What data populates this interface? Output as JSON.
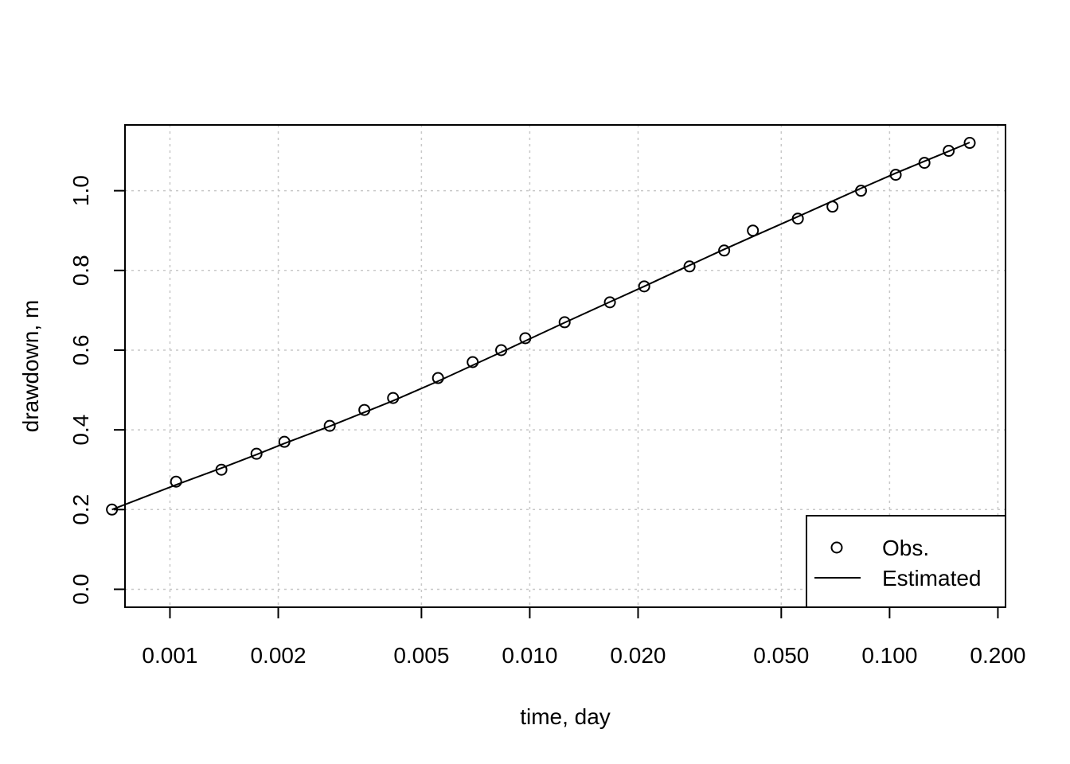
{
  "chart_data": {
    "type": "scatter",
    "title": "",
    "xlabel": "time, day",
    "ylabel": "drawdown, m",
    "x_scale": "log",
    "xlim": [
      0.00075,
      0.21
    ],
    "ylim": [
      -0.045,
      1.165
    ],
    "x_ticks": [
      0.001,
      0.002,
      0.005,
      0.01,
      0.02,
      0.05,
      0.1,
      0.2
    ],
    "x_tick_labels": [
      "0.001",
      "0.002",
      "0.005",
      "0.010",
      "0.020",
      "0.050",
      "0.100",
      "0.200"
    ],
    "y_ticks": [
      0.0,
      0.2,
      0.4,
      0.6,
      0.8,
      1.0
    ],
    "y_tick_labels": [
      "0.0",
      "0.2",
      "0.4",
      "0.6",
      "0.8",
      "1.0"
    ],
    "grid": true,
    "legend_position": "bottom-right",
    "series": [
      {
        "name": "Obs.",
        "kind": "points",
        "marker": "open-circle",
        "x": [
          0.00069,
          0.00104,
          0.00139,
          0.00174,
          0.00208,
          0.00278,
          0.00347,
          0.00417,
          0.00556,
          0.00694,
          0.00833,
          0.00972,
          0.0125,
          0.0167,
          0.0208,
          0.0278,
          0.0347,
          0.0417,
          0.0556,
          0.0694,
          0.0833,
          0.104,
          0.125,
          0.146,
          0.167
        ],
        "y": [
          0.2,
          0.27,
          0.3,
          0.34,
          0.37,
          0.41,
          0.45,
          0.48,
          0.53,
          0.57,
          0.6,
          0.63,
          0.67,
          0.72,
          0.76,
          0.81,
          0.85,
          0.9,
          0.93,
          0.96,
          1.0,
          1.04,
          1.07,
          1.1,
          1.12
        ]
      },
      {
        "name": "Estimated",
        "kind": "line",
        "x": [
          0.00069,
          0.00104,
          0.00139,
          0.00174,
          0.00208,
          0.00278,
          0.00347,
          0.00417,
          0.00556,
          0.00694,
          0.00833,
          0.00972,
          0.0125,
          0.0167,
          0.0208,
          0.0278,
          0.0347,
          0.0417,
          0.0556,
          0.0694,
          0.0833,
          0.104,
          0.125,
          0.146,
          0.167
        ],
        "y": [
          0.2,
          0.262,
          0.304,
          0.338,
          0.366,
          0.409,
          0.444,
          0.473,
          0.522,
          0.562,
          0.595,
          0.623,
          0.669,
          0.721,
          0.76,
          0.813,
          0.853,
          0.885,
          0.935,
          0.974,
          1.006,
          1.044,
          1.074,
          1.099,
          1.121
        ]
      }
    ]
  }
}
